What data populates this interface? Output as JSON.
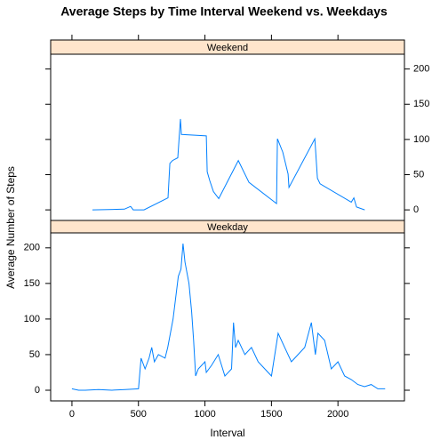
{
  "chart_data": {
    "type": "line",
    "title": "Average Steps by Time Interval Weekend vs. Weekdays",
    "xlabel": "Interval",
    "ylabel": "Average Number of Steps",
    "xlim": [
      -160,
      2500
    ],
    "xticks": [
      0,
      500,
      1000,
      1500,
      2000
    ],
    "ylim": [
      -15,
      221
    ],
    "yticks": [
      0,
      50,
      100,
      150,
      200
    ],
    "color": "#0080ff",
    "strip_color": "#ffe5cc",
    "panels": [
      {
        "name": "Weekend",
        "x": [
          154,
          395,
          441,
          461,
          542,
          722,
          736,
          756,
          796,
          816,
          823,
          1010,
          1017,
          1037,
          1064,
          1104,
          1251,
          1331,
          1538,
          1545,
          1585,
          1625,
          1632,
          1826,
          1846,
          1866,
          2100,
          2120,
          2140,
          2201
        ],
        "values": [
          0,
          1,
          5,
          0,
          0,
          17,
          66,
          70,
          74,
          129,
          107,
          105,
          54,
          41,
          26,
          16,
          70,
          39,
          9,
          101,
          82,
          51,
          32,
          101,
          45,
          37,
          11,
          17,
          4,
          0
        ]
      },
      {
        "name": "Weekday",
        "x": [
          0,
          50,
          100,
          200,
          300,
          400,
          500,
          520,
          550,
          580,
          600,
          620,
          650,
          700,
          720,
          760,
          800,
          820,
          835,
          850,
          880,
          900,
          915,
          930,
          950,
          1000,
          1010,
          1050,
          1100,
          1150,
          1200,
          1215,
          1230,
          1250,
          1300,
          1350,
          1400,
          1450,
          1500,
          1550,
          1600,
          1650,
          1700,
          1750,
          1800,
          1830,
          1850,
          1900,
          1950,
          2000,
          2050,
          2100,
          2150,
          2200,
          2250,
          2300,
          2355
        ],
        "values": [
          2,
          0,
          0,
          1,
          0,
          1,
          2,
          45,
          30,
          45,
          60,
          40,
          50,
          45,
          60,
          100,
          160,
          170,
          206,
          180,
          150,
          110,
          70,
          20,
          30,
          40,
          25,
          35,
          50,
          20,
          30,
          95,
          60,
          70,
          50,
          60,
          40,
          30,
          20,
          80,
          60,
          40,
          50,
          60,
          95,
          50,
          80,
          70,
          30,
          40,
          20,
          15,
          8,
          5,
          8,
          2,
          2
        ]
      }
    ]
  }
}
